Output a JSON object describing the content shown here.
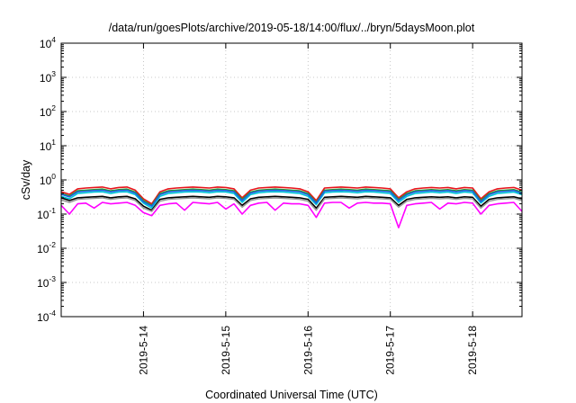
{
  "chart_data": {
    "type": "line",
    "title": "/data/run/goesPlots/archive/2019-05-18/14:00/flux/../bryn/5daysMoon.plot",
    "xlabel": "Coordinated Universal Time (UTC)",
    "ylabel": "cSv/day",
    "yscale": "log",
    "ylim": [
      0.0001,
      10000
    ],
    "xlim": [
      0,
      5.6
    ],
    "grid": true,
    "legend": "none",
    "y_ticks": [
      {
        "base": "10",
        "exp": "-4",
        "value": 0.0001
      },
      {
        "base": "10",
        "exp": "-3",
        "value": 0.001
      },
      {
        "base": "10",
        "exp": "-2",
        "value": 0.01
      },
      {
        "base": "10",
        "exp": "-1",
        "value": 0.1
      },
      {
        "base": "10",
        "exp": "0",
        "value": 1
      },
      {
        "base": "10",
        "exp": "1",
        "value": 10
      },
      {
        "base": "10",
        "exp": "2",
        "value": 100
      },
      {
        "base": "10",
        "exp": "3",
        "value": 1000
      },
      {
        "base": "10",
        "exp": "4",
        "value": 10000
      }
    ],
    "x_ticks": [
      {
        "label": "2019-5-14",
        "value": 1
      },
      {
        "label": "2019-5-15",
        "value": 2
      },
      {
        "label": "2019-5-16",
        "value": 3
      },
      {
        "label": "2019-5-17",
        "value": 4
      },
      {
        "label": "2019-5-18",
        "value": 5
      }
    ],
    "x": [
      0,
      0.1,
      0.2,
      0.3,
      0.4,
      0.5,
      0.6,
      0.7,
      0.8,
      0.9,
      1.0,
      1.1,
      1.2,
      1.3,
      1.4,
      1.5,
      1.6,
      1.7,
      1.8,
      1.9,
      2.0,
      2.1,
      2.2,
      2.3,
      2.4,
      2.5,
      2.6,
      2.7,
      2.8,
      2.9,
      3.0,
      3.1,
      3.2,
      3.3,
      3.4,
      3.5,
      3.6,
      3.7,
      3.8,
      3.9,
      4.0,
      4.1,
      4.2,
      4.3,
      4.4,
      4.5,
      4.6,
      4.7,
      4.8,
      4.9,
      5.0,
      5.1,
      5.2,
      5.3,
      5.4,
      5.5,
      5.6
    ],
    "series": [
      {
        "color": "#e8141c",
        "values": [
          0.45,
          0.38,
          0.55,
          0.58,
          0.6,
          0.62,
          0.55,
          0.6,
          0.62,
          0.5,
          0.28,
          0.2,
          0.45,
          0.55,
          0.58,
          0.6,
          0.62,
          0.6,
          0.58,
          0.62,
          0.6,
          0.55,
          0.3,
          0.5,
          0.58,
          0.6,
          0.62,
          0.6,
          0.58,
          0.55,
          0.45,
          0.25,
          0.58,
          0.6,
          0.62,
          0.6,
          0.58,
          0.62,
          0.6,
          0.58,
          0.55,
          0.3,
          0.45,
          0.55,
          0.58,
          0.6,
          0.58,
          0.6,
          0.55,
          0.6,
          0.58,
          0.28,
          0.45,
          0.55,
          0.58,
          0.6,
          0.5
        ]
      },
      {
        "color": "#2a9a2a",
        "values": [
          0.4,
          0.34,
          0.48,
          0.5,
          0.52,
          0.54,
          0.48,
          0.52,
          0.54,
          0.44,
          0.25,
          0.18,
          0.4,
          0.48,
          0.5,
          0.52,
          0.54,
          0.52,
          0.5,
          0.54,
          0.52,
          0.48,
          0.27,
          0.44,
          0.5,
          0.52,
          0.54,
          0.52,
          0.5,
          0.48,
          0.4,
          0.22,
          0.5,
          0.52,
          0.54,
          0.52,
          0.5,
          0.54,
          0.52,
          0.5,
          0.48,
          0.27,
          0.4,
          0.48,
          0.5,
          0.52,
          0.5,
          0.52,
          0.48,
          0.52,
          0.5,
          0.25,
          0.4,
          0.48,
          0.5,
          0.52,
          0.44
        ]
      },
      {
        "color": "#00c8d8",
        "values": [
          0.33,
          0.28,
          0.4,
          0.42,
          0.44,
          0.45,
          0.4,
          0.44,
          0.45,
          0.37,
          0.21,
          0.15,
          0.33,
          0.4,
          0.42,
          0.44,
          0.45,
          0.44,
          0.42,
          0.45,
          0.44,
          0.4,
          0.22,
          0.37,
          0.42,
          0.44,
          0.45,
          0.44,
          0.42,
          0.4,
          0.33,
          0.19,
          0.42,
          0.44,
          0.45,
          0.44,
          0.42,
          0.45,
          0.44,
          0.42,
          0.4,
          0.22,
          0.33,
          0.4,
          0.42,
          0.44,
          0.42,
          0.44,
          0.4,
          0.44,
          0.42,
          0.21,
          0.33,
          0.4,
          0.42,
          0.44,
          0.37
        ]
      },
      {
        "color": "#2060e0",
        "values": [
          0.38,
          0.32,
          0.45,
          0.47,
          0.49,
          0.5,
          0.45,
          0.49,
          0.5,
          0.41,
          0.23,
          0.17,
          0.37,
          0.45,
          0.47,
          0.49,
          0.5,
          0.49,
          0.47,
          0.5,
          0.49,
          0.45,
          0.25,
          0.41,
          0.47,
          0.49,
          0.5,
          0.49,
          0.47,
          0.45,
          0.37,
          0.21,
          0.47,
          0.49,
          0.5,
          0.49,
          0.47,
          0.5,
          0.49,
          0.47,
          0.45,
          0.25,
          0.37,
          0.45,
          0.47,
          0.49,
          0.47,
          0.49,
          0.45,
          0.49,
          0.47,
          0.23,
          0.37,
          0.45,
          0.47,
          0.49,
          0.41
        ]
      },
      {
        "color": "#000000",
        "values": [
          0.3,
          0.25,
          0.3,
          0.31,
          0.32,
          0.33,
          0.3,
          0.32,
          0.33,
          0.28,
          0.17,
          0.13,
          0.27,
          0.3,
          0.31,
          0.32,
          0.33,
          0.32,
          0.31,
          0.33,
          0.32,
          0.3,
          0.18,
          0.28,
          0.31,
          0.32,
          0.33,
          0.32,
          0.31,
          0.3,
          0.27,
          0.15,
          0.31,
          0.32,
          0.33,
          0.32,
          0.31,
          0.33,
          0.32,
          0.31,
          0.3,
          0.18,
          0.27,
          0.3,
          0.31,
          0.32,
          0.31,
          0.32,
          0.3,
          0.32,
          0.31,
          0.17,
          0.27,
          0.3,
          0.31,
          0.32,
          0.28
        ]
      },
      {
        "color": "#9a9a9a",
        "values": [
          0.26,
          0.22,
          0.27,
          0.28,
          0.29,
          0.3,
          0.27,
          0.29,
          0.3,
          0.25,
          0.15,
          0.12,
          0.24,
          0.27,
          0.28,
          0.29,
          0.3,
          0.29,
          0.28,
          0.3,
          0.29,
          0.27,
          0.16,
          0.25,
          0.28,
          0.29,
          0.3,
          0.29,
          0.28,
          0.27,
          0.24,
          0.13,
          0.28,
          0.29,
          0.3,
          0.29,
          0.28,
          0.3,
          0.29,
          0.28,
          0.27,
          0.16,
          0.24,
          0.27,
          0.28,
          0.29,
          0.28,
          0.29,
          0.27,
          0.29,
          0.28,
          0.15,
          0.24,
          0.27,
          0.28,
          0.29,
          0.25
        ]
      },
      {
        "color": "#ff00ff",
        "values": [
          0.18,
          0.1,
          0.2,
          0.21,
          0.15,
          0.22,
          0.2,
          0.21,
          0.22,
          0.18,
          0.11,
          0.09,
          0.18,
          0.2,
          0.21,
          0.13,
          0.22,
          0.21,
          0.2,
          0.22,
          0.14,
          0.2,
          0.1,
          0.18,
          0.21,
          0.22,
          0.13,
          0.21,
          0.2,
          0.2,
          0.18,
          0.08,
          0.21,
          0.22,
          0.22,
          0.15,
          0.21,
          0.22,
          0.21,
          0.21,
          0.2,
          0.04,
          0.18,
          0.2,
          0.21,
          0.22,
          0.14,
          0.21,
          0.2,
          0.22,
          0.21,
          0.1,
          0.18,
          0.2,
          0.21,
          0.22,
          0.12
        ]
      }
    ]
  }
}
